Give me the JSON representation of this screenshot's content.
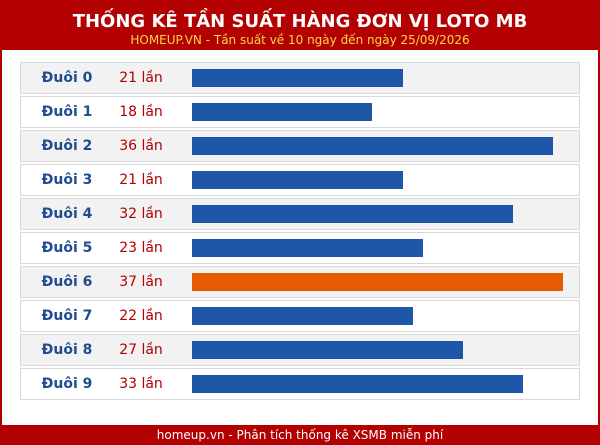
{
  "header": {
    "title": "THỐNG KÊ TẦN SUẤT HÀNG ĐƠN VỊ LOTO MB",
    "subtitle": "HOMEUP.VN - Tần suất về 10 ngày đến ngày 25/09/2026"
  },
  "footer": {
    "text": "homeup.vn - Phân tích thống kê XSMB miễn phí"
  },
  "colors": {
    "brand": "#b30000",
    "bar": "#1e57a8",
    "bar_max": "#e65c00",
    "label": "#1f4d8f"
  },
  "chart_data": {
    "type": "bar",
    "orientation": "horizontal",
    "categories": [
      "Đuôi 0",
      "Đuôi 1",
      "Đuôi 2",
      "Đuôi 3",
      "Đuôi 4",
      "Đuôi 5",
      "Đuôi 6",
      "Đuôi 7",
      "Đuôi 8",
      "Đuôi 9"
    ],
    "values": [
      21,
      18,
      36,
      21,
      32,
      23,
      37,
      22,
      27,
      33
    ],
    "value_labels": [
      "21 lần",
      "18 lần",
      "36 lần",
      "21 lần",
      "32 lần",
      "23 lần",
      "37 lần",
      "22 lần",
      "27 lần",
      "33 lần"
    ],
    "highlight": "max",
    "title": "THỐNG KÊ TẦN SUẤT HÀNG ĐƠN VỊ LOTO MB",
    "grid": false
  }
}
